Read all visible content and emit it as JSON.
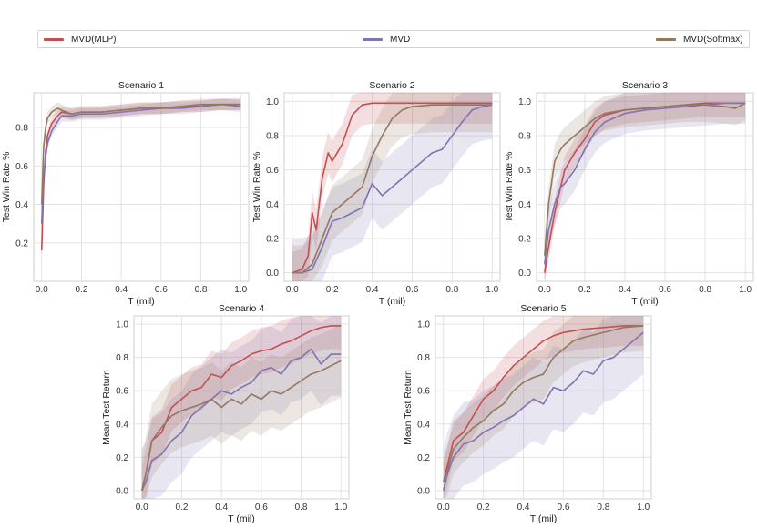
{
  "legend": {
    "items": [
      {
        "label": "MVD(MLP)",
        "color": "#c44e52"
      },
      {
        "label": "MVD",
        "color": "#8172b2"
      },
      {
        "label": "MVD(Softmax)",
        "color": "#937860"
      }
    ]
  },
  "chart_data": [
    {
      "type": "line",
      "title": "Scenario 1",
      "xlabel": "T (mil)",
      "ylabel": "Test Win Rate %",
      "xlim": [
        -0.04,
        1.04
      ],
      "ylim": [
        0.0,
        0.98
      ],
      "xticks": [
        "0.0",
        "0.2",
        "0.4",
        "0.6",
        "0.8",
        "1.0"
      ],
      "yticks": [
        "0.2",
        "0.4",
        "0.6",
        "0.8"
      ],
      "series": [
        {
          "name": "MVD(MLP)",
          "x": [
            0,
            0.01,
            0.02,
            0.03,
            0.05,
            0.08,
            0.1,
            0.15,
            0.2,
            0.3,
            0.4,
            0.5,
            0.6,
            0.7,
            0.8,
            0.9,
            1.0
          ],
          "y": [
            0.16,
            0.5,
            0.68,
            0.76,
            0.82,
            0.86,
            0.88,
            0.87,
            0.88,
            0.88,
            0.89,
            0.9,
            0.9,
            0.91,
            0.91,
            0.92,
            0.92
          ],
          "band": 0.03
        },
        {
          "name": "MVD",
          "x": [
            0,
            0.01,
            0.02,
            0.03,
            0.05,
            0.08,
            0.1,
            0.15,
            0.2,
            0.3,
            0.4,
            0.5,
            0.6,
            0.7,
            0.8,
            0.9,
            1.0
          ],
          "y": [
            0.3,
            0.55,
            0.65,
            0.72,
            0.78,
            0.83,
            0.86,
            0.86,
            0.87,
            0.87,
            0.88,
            0.89,
            0.9,
            0.9,
            0.91,
            0.92,
            0.91
          ],
          "band": 0.03
        },
        {
          "name": "MVD(Softmax)",
          "x": [
            0,
            0.01,
            0.02,
            0.03,
            0.05,
            0.08,
            0.1,
            0.15,
            0.2,
            0.3,
            0.4,
            0.5,
            0.6,
            0.7,
            0.8,
            0.9,
            1.0
          ],
          "y": [
            0.4,
            0.7,
            0.8,
            0.85,
            0.88,
            0.9,
            0.89,
            0.87,
            0.88,
            0.88,
            0.89,
            0.9,
            0.9,
            0.91,
            0.92,
            0.92,
            0.92
          ],
          "band": 0.03
        }
      ]
    },
    {
      "type": "line",
      "title": "Scenario 2",
      "xlabel": "T (mil)",
      "ylabel": "Test Win Rate %",
      "xlim": [
        -0.04,
        1.04
      ],
      "ylim": [
        -0.05,
        1.05
      ],
      "xticks": [
        "0.0",
        "0.2",
        "0.4",
        "0.6",
        "0.8",
        "1.0"
      ],
      "yticks": [
        "0.0",
        "0.2",
        "0.4",
        "0.6",
        "0.8",
        "1.0"
      ],
      "series": [
        {
          "name": "MVD(MLP)",
          "x": [
            0,
            0.05,
            0.08,
            0.1,
            0.12,
            0.15,
            0.18,
            0.2,
            0.25,
            0.3,
            0.35,
            0.4,
            0.45,
            0.5,
            0.6,
            0.7,
            0.8,
            0.9,
            1.0
          ],
          "y": [
            0.0,
            0.02,
            0.1,
            0.35,
            0.25,
            0.55,
            0.7,
            0.65,
            0.75,
            0.92,
            0.98,
            0.99,
            0.99,
            0.99,
            0.99,
            0.99,
            0.99,
            0.99,
            0.99
          ],
          "band": 0.12
        },
        {
          "name": "MVD",
          "x": [
            0,
            0.05,
            0.1,
            0.15,
            0.2,
            0.25,
            0.3,
            0.35,
            0.4,
            0.45,
            0.5,
            0.55,
            0.6,
            0.65,
            0.7,
            0.75,
            0.8,
            0.85,
            0.9,
            0.95,
            1.0
          ],
          "y": [
            0.0,
            0.0,
            0.02,
            0.15,
            0.3,
            0.32,
            0.35,
            0.38,
            0.52,
            0.45,
            0.5,
            0.55,
            0.6,
            0.65,
            0.7,
            0.72,
            0.8,
            0.88,
            0.95,
            0.97,
            0.98
          ],
          "band": 0.2
        },
        {
          "name": "MVD(Softmax)",
          "x": [
            0,
            0.05,
            0.1,
            0.15,
            0.2,
            0.25,
            0.3,
            0.35,
            0.4,
            0.45,
            0.5,
            0.55,
            0.6,
            0.7,
            0.8,
            0.9,
            1.0
          ],
          "y": [
            0.0,
            0.0,
            0.05,
            0.2,
            0.35,
            0.4,
            0.45,
            0.5,
            0.68,
            0.8,
            0.9,
            0.95,
            0.97,
            0.98,
            0.98,
            0.98,
            0.98
          ],
          "band": 0.16
        }
      ]
    },
    {
      "type": "line",
      "title": "Scenario 3",
      "xlabel": "T (mil)",
      "ylabel": "Test Win Rate %",
      "xlim": [
        -0.04,
        1.04
      ],
      "ylim": [
        -0.05,
        1.05
      ],
      "xticks": [
        "0.0",
        "0.2",
        "0.4",
        "0.6",
        "0.8",
        "1.0"
      ],
      "yticks": [
        "0.0",
        "0.2",
        "0.4",
        "0.6",
        "0.8",
        "1.0"
      ],
      "series": [
        {
          "name": "MVD(MLP)",
          "x": [
            0,
            0.02,
            0.05,
            0.08,
            0.1,
            0.15,
            0.2,
            0.25,
            0.3,
            0.4,
            0.5,
            0.6,
            0.7,
            0.8,
            0.9,
            1.0
          ],
          "y": [
            0.0,
            0.15,
            0.35,
            0.5,
            0.6,
            0.7,
            0.78,
            0.88,
            0.92,
            0.95,
            0.96,
            0.97,
            0.98,
            0.99,
            0.99,
            0.99
          ],
          "band": 0.08
        },
        {
          "name": "MVD",
          "x": [
            0,
            0.02,
            0.05,
            0.08,
            0.1,
            0.15,
            0.2,
            0.25,
            0.3,
            0.4,
            0.5,
            0.6,
            0.7,
            0.8,
            0.9,
            1.0
          ],
          "y": [
            0.05,
            0.25,
            0.4,
            0.5,
            0.52,
            0.6,
            0.72,
            0.82,
            0.88,
            0.93,
            0.95,
            0.96,
            0.97,
            0.98,
            0.99,
            0.99
          ],
          "band": 0.12
        },
        {
          "name": "MVD(Softmax)",
          "x": [
            0,
            0.02,
            0.05,
            0.08,
            0.1,
            0.15,
            0.2,
            0.25,
            0.3,
            0.4,
            0.5,
            0.6,
            0.7,
            0.8,
            0.9,
            0.95,
            1.0
          ],
          "y": [
            0.1,
            0.4,
            0.65,
            0.72,
            0.75,
            0.8,
            0.85,
            0.9,
            0.93,
            0.95,
            0.96,
            0.97,
            0.98,
            0.98,
            0.97,
            0.96,
            0.99
          ],
          "band": 0.1
        }
      ]
    },
    {
      "type": "line",
      "title": "Scenario 4",
      "xlabel": "T (mil)",
      "ylabel": "Mean Test Return",
      "xlim": [
        -0.04,
        1.04
      ],
      "ylim": [
        -0.05,
        1.05
      ],
      "xticks": [
        "0.0",
        "0.2",
        "0.4",
        "0.6",
        "0.8",
        "1.0"
      ],
      "yticks": [
        "0.0",
        "0.2",
        "0.4",
        "0.6",
        "0.8",
        "1.0"
      ],
      "series": [
        {
          "name": "MVD(MLP)",
          "x": [
            0,
            0.02,
            0.05,
            0.1,
            0.15,
            0.2,
            0.25,
            0.3,
            0.35,
            0.4,
            0.45,
            0.5,
            0.55,
            0.6,
            0.65,
            0.7,
            0.75,
            0.8,
            0.85,
            0.9,
            0.95,
            1.0
          ],
          "y": [
            0.0,
            0.1,
            0.3,
            0.35,
            0.5,
            0.55,
            0.6,
            0.62,
            0.7,
            0.68,
            0.75,
            0.78,
            0.82,
            0.84,
            0.85,
            0.88,
            0.9,
            0.93,
            0.96,
            0.98,
            0.99,
            0.99
          ],
          "band": 0.14
        },
        {
          "name": "MVD",
          "x": [
            0,
            0.02,
            0.05,
            0.1,
            0.15,
            0.2,
            0.25,
            0.3,
            0.35,
            0.4,
            0.45,
            0.5,
            0.55,
            0.6,
            0.65,
            0.7,
            0.75,
            0.8,
            0.85,
            0.9,
            0.95,
            1.0
          ],
          "y": [
            0.0,
            0.05,
            0.18,
            0.22,
            0.3,
            0.35,
            0.45,
            0.5,
            0.55,
            0.6,
            0.58,
            0.62,
            0.65,
            0.72,
            0.74,
            0.7,
            0.78,
            0.8,
            0.85,
            0.76,
            0.82,
            0.82
          ],
          "band": 0.25
        },
        {
          "name": "MVD(Softmax)",
          "x": [
            0,
            0.02,
            0.05,
            0.1,
            0.15,
            0.2,
            0.25,
            0.3,
            0.35,
            0.4,
            0.45,
            0.5,
            0.55,
            0.6,
            0.65,
            0.7,
            0.75,
            0.8,
            0.85,
            0.9,
            0.95,
            1.0
          ],
          "y": [
            0.0,
            0.1,
            0.3,
            0.38,
            0.45,
            0.48,
            0.5,
            0.52,
            0.55,
            0.5,
            0.55,
            0.52,
            0.58,
            0.55,
            0.6,
            0.58,
            0.62,
            0.66,
            0.7,
            0.72,
            0.75,
            0.78
          ],
          "band": 0.22
        }
      ]
    },
    {
      "type": "line",
      "title": "Scenario 5",
      "xlabel": "T (mil)",
      "ylabel": "Mean Test Return",
      "xlim": [
        -0.04,
        1.04
      ],
      "ylim": [
        -0.05,
        1.05
      ],
      "xticks": [
        "0.0",
        "0.2",
        "0.4",
        "0.6",
        "0.8",
        "1.0"
      ],
      "yticks": [
        "0.0",
        "0.2",
        "0.4",
        "0.6",
        "0.8",
        "1.0"
      ],
      "series": [
        {
          "name": "MVD(MLP)",
          "x": [
            0,
            0.02,
            0.05,
            0.1,
            0.15,
            0.2,
            0.25,
            0.3,
            0.35,
            0.4,
            0.45,
            0.5,
            0.55,
            0.6,
            0.65,
            0.7,
            0.8,
            0.9,
            1.0
          ],
          "y": [
            0.05,
            0.15,
            0.3,
            0.35,
            0.45,
            0.55,
            0.6,
            0.68,
            0.75,
            0.8,
            0.85,
            0.9,
            0.93,
            0.95,
            0.96,
            0.97,
            0.98,
            0.99,
            0.99
          ],
          "band": 0.12
        },
        {
          "name": "MVD",
          "x": [
            0,
            0.02,
            0.05,
            0.1,
            0.15,
            0.2,
            0.25,
            0.3,
            0.35,
            0.4,
            0.45,
            0.5,
            0.55,
            0.6,
            0.65,
            0.7,
            0.75,
            0.8,
            0.85,
            0.9,
            0.95,
            1.0
          ],
          "y": [
            0.0,
            0.1,
            0.2,
            0.28,
            0.3,
            0.35,
            0.38,
            0.42,
            0.45,
            0.5,
            0.55,
            0.52,
            0.62,
            0.6,
            0.65,
            0.72,
            0.7,
            0.78,
            0.8,
            0.85,
            0.9,
            0.95
          ],
          "band": 0.25
        },
        {
          "name": "MVD(Softmax)",
          "x": [
            0,
            0.02,
            0.05,
            0.1,
            0.15,
            0.2,
            0.25,
            0.3,
            0.35,
            0.4,
            0.45,
            0.5,
            0.55,
            0.6,
            0.65,
            0.7,
            0.8,
            0.9,
            1.0
          ],
          "y": [
            0.05,
            0.12,
            0.25,
            0.32,
            0.38,
            0.42,
            0.48,
            0.52,
            0.6,
            0.65,
            0.68,
            0.7,
            0.8,
            0.85,
            0.9,
            0.92,
            0.95,
            0.98,
            0.99
          ],
          "band": 0.15
        }
      ]
    }
  ]
}
